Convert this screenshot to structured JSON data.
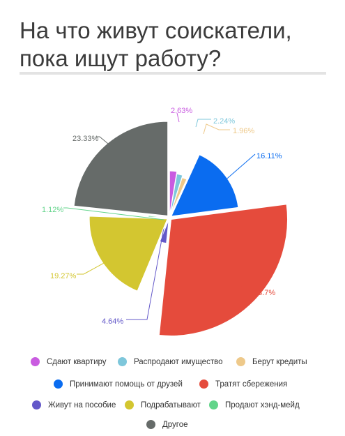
{
  "header": {
    "title_line1": "На что живут соискатели,",
    "title_line2": "пока ищут работу?"
  },
  "chart_data": {
    "type": "pie",
    "variant": "variable-radius exploded pie",
    "start_angle_deg": 0,
    "direction": "clockwise",
    "slices": [
      {
        "label": "Сдают квартиру",
        "value": 2.63,
        "value_label": "2.63%",
        "color": "#c95ce0",
        "radius_rel": 0.38
      },
      {
        "label": "Распродают имущество",
        "value": 2.24,
        "value_label": "2.24%",
        "color": "#7ec7db",
        "radius_rel": 0.36
      },
      {
        "label": "Берут кредиты",
        "value": 1.96,
        "value_label": "1.96%",
        "color": "#eec98a",
        "radius_rel": 0.34
      },
      {
        "label": "Принимают помощь от друзей",
        "value": 16.11,
        "value_label": "16.11%",
        "color": "#0a6cf0",
        "radius_rel": 0.58
      },
      {
        "label": "Тратят сбережения",
        "value": 28.7,
        "value_label": "28.7%",
        "color": "#e54b3c",
        "radius_rel": 1.0
      },
      {
        "label": "Живут на пособие",
        "value": 4.64,
        "value_label": "4.64%",
        "color": "#6358c9",
        "radius_rel": 0.2
      },
      {
        "label": "Подрабатывают",
        "value": 19.27,
        "value_label": "19.27%",
        "color": "#d3c630",
        "radius_rel": 0.67
      },
      {
        "label": "Продают хэнд-мейд",
        "value": 1.12,
        "value_label": "1.12%",
        "color": "#62d48a",
        "radius_rel": 0.16
      },
      {
        "label": "Другое",
        "value": 23.33,
        "value_label": "23.33%",
        "color": "#666b69",
        "radius_rel": 0.81
      }
    ],
    "legend_position": "bottom"
  }
}
